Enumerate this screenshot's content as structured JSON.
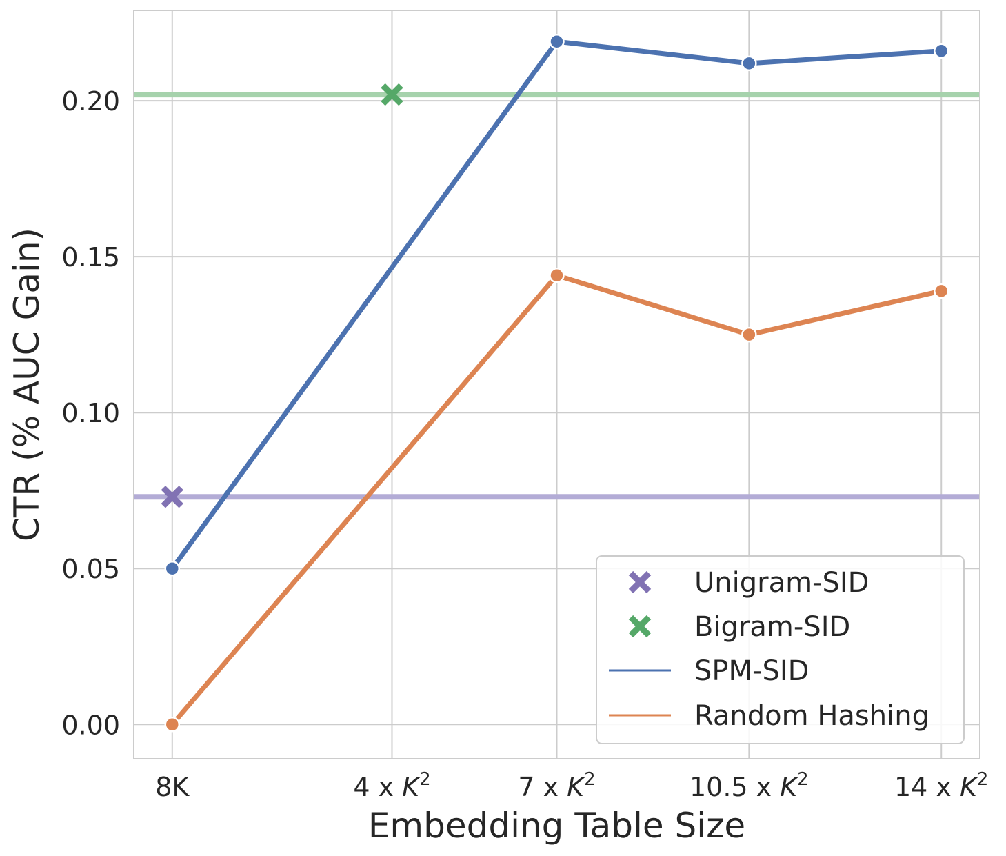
{
  "chart_data": {
    "type": "line",
    "xlabel": "Embedding Table Size",
    "ylabel": "CTR (% AUC Gain)",
    "x_categories": [
      {
        "base": "8K",
        "exp": ""
      },
      {
        "base": "4 x K",
        "exp": "2"
      },
      {
        "base": "7 x K",
        "exp": "2"
      },
      {
        "base": "10.5 x K",
        "exp": "2"
      },
      {
        "base": "14 x K",
        "exp": "2"
      }
    ],
    "x_positions": [
      0,
      4,
      7,
      10.5,
      14
    ],
    "xlim": [
      -0.7,
      14.7
    ],
    "ylim": [
      -0.011,
      0.229
    ],
    "yticks": [
      0.0,
      0.05,
      0.1,
      0.15,
      0.2
    ],
    "ytick_labels": [
      "0.00",
      "0.05",
      "0.10",
      "0.15",
      "0.20"
    ],
    "grid": true,
    "legend_position": "bottom-right",
    "series": [
      {
        "name": "SPM-SID",
        "kind": "line",
        "color": "#4c72b0",
        "x": [
          0,
          7,
          10.5,
          14
        ],
        "y": [
          0.05,
          0.219,
          0.212,
          0.216
        ]
      },
      {
        "name": "Random Hashing",
        "kind": "line",
        "color": "#dd8452",
        "x": [
          0,
          7,
          10.5,
          14
        ],
        "y": [
          0.0,
          0.144,
          0.125,
          0.139
        ]
      }
    ],
    "markers": [
      {
        "name": "Unigram-SID",
        "color": "#8172b3",
        "x": 0,
        "y": 0.073
      },
      {
        "name": "Bigram-SID",
        "color": "#55a868",
        "x": 4,
        "y": 0.202
      }
    ],
    "hlines": [
      {
        "ref": "Unigram-SID",
        "y": 0.073,
        "color": "#b3acd6"
      },
      {
        "ref": "Bigram-SID",
        "y": 0.202,
        "color": "#a6d2ac"
      }
    ],
    "legend": [
      "Unigram-SID",
      "Bigram-SID",
      "SPM-SID",
      "Random Hashing"
    ]
  }
}
